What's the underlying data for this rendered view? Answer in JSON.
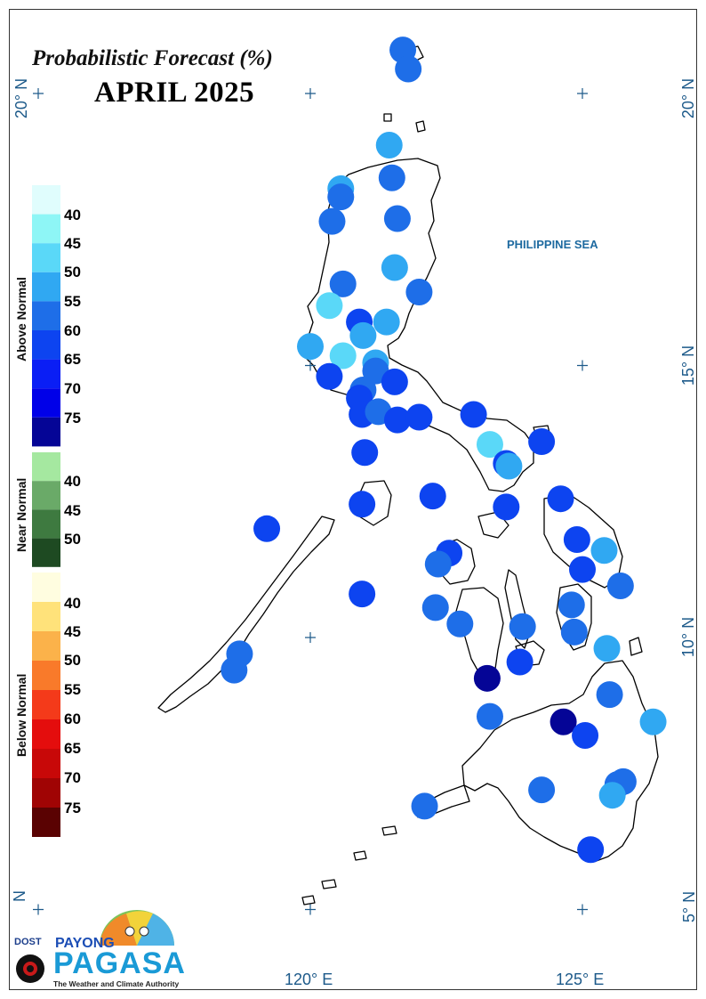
{
  "map": {
    "title": "Probabilistic Forecast (%)",
    "subtitle": "APRIL 2025",
    "sea_label": "PHILIPPINE SEA",
    "lat_labels": [
      "20° N",
      "15° N",
      "10° N",
      "5° N",
      "N"
    ],
    "lon_labels": [
      "120° E",
      "125° E"
    ]
  },
  "legend": {
    "above": {
      "title": "Above Normal",
      "labels": [
        "40",
        "45",
        "50",
        "55",
        "60",
        "65",
        "70",
        "75"
      ],
      "colors": [
        "#e0fdfd",
        "#8ef6f6",
        "#5ad8f8",
        "#30a8f2",
        "#1e6ee8",
        "#0d44f0",
        "#0a1ef5",
        "#0000e8",
        "#050596"
      ]
    },
    "near": {
      "title": "Near Normal",
      "labels": [
        "40",
        "45",
        "50"
      ],
      "colors": [
        "#a5e8a0",
        "#6aaa68",
        "#3e7a40",
        "#1e4a22"
      ]
    },
    "below": {
      "title": "Below Normal",
      "labels": [
        "40",
        "45",
        "50",
        "55",
        "60",
        "65",
        "70",
        "75"
      ],
      "colors": [
        "#fffde0",
        "#ffe27a",
        "#fbb24a",
        "#f97a2a",
        "#f43a1a",
        "#e40d0d",
        "#c80808",
        "#a00404",
        "#5a0202"
      ]
    }
  },
  "stations": [
    {
      "lon": 121.7,
      "lat": 20.8,
      "color": "#1e6ee8"
    },
    {
      "lon": 121.8,
      "lat": 20.45,
      "color": "#1e6ee8"
    },
    {
      "lon": 121.45,
      "lat": 19.05,
      "color": "#30a8f2"
    },
    {
      "lon": 121.5,
      "lat": 18.45,
      "color": "#1e6ee8"
    },
    {
      "lon": 120.56,
      "lat": 18.25,
      "color": "#30a8f2"
    },
    {
      "lon": 120.56,
      "lat": 18.1,
      "color": "#1e6ee8"
    },
    {
      "lon": 120.4,
      "lat": 17.65,
      "color": "#1e6ee8"
    },
    {
      "lon": 121.6,
      "lat": 17.7,
      "color": "#1e6ee8"
    },
    {
      "lon": 121.55,
      "lat": 16.8,
      "color": "#30a8f2"
    },
    {
      "lon": 120.6,
      "lat": 16.5,
      "color": "#1e6ee8"
    },
    {
      "lon": 122.0,
      "lat": 16.35,
      "color": "#1e6ee8"
    },
    {
      "lon": 120.35,
      "lat": 16.1,
      "color": "#5ad8f8"
    },
    {
      "lon": 120.9,
      "lat": 15.8,
      "color": "#0d44f0"
    },
    {
      "lon": 121.4,
      "lat": 15.8,
      "color": "#30a8f2"
    },
    {
      "lon": 120.97,
      "lat": 15.55,
      "color": "#30a8f2"
    },
    {
      "lon": 120.0,
      "lat": 15.35,
      "color": "#30a8f2"
    },
    {
      "lon": 120.6,
      "lat": 15.18,
      "color": "#5ad8f8"
    },
    {
      "lon": 121.2,
      "lat": 15.05,
      "color": "#30a8f2"
    },
    {
      "lon": 120.35,
      "lat": 14.8,
      "color": "#0d44f0"
    },
    {
      "lon": 121.2,
      "lat": 14.9,
      "color": "#1e6ee8"
    },
    {
      "lon": 121.55,
      "lat": 14.7,
      "color": "#0d44f0"
    },
    {
      "lon": 120.97,
      "lat": 14.55,
      "color": "#1e6ee8"
    },
    {
      "lon": 120.9,
      "lat": 14.4,
      "color": "#0d44f0"
    },
    {
      "lon": 120.95,
      "lat": 14.1,
      "color": "#0d44f0"
    },
    {
      "lon": 121.25,
      "lat": 14.15,
      "color": "#1e6ee8"
    },
    {
      "lon": 121.6,
      "lat": 14.0,
      "color": "#0d44f0"
    },
    {
      "lon": 122.0,
      "lat": 14.05,
      "color": "#0d44f0"
    },
    {
      "lon": 123.0,
      "lat": 14.1,
      "color": "#0d44f0"
    },
    {
      "lon": 123.3,
      "lat": 13.55,
      "color": "#5ad8f8"
    },
    {
      "lon": 124.25,
      "lat": 13.6,
      "color": "#0d44f0"
    },
    {
      "lon": 121.0,
      "lat": 13.4,
      "color": "#0d44f0"
    },
    {
      "lon": 123.6,
      "lat": 13.2,
      "color": "#0d44f0"
    },
    {
      "lon": 123.65,
      "lat": 13.15,
      "color": "#30a8f2"
    },
    {
      "lon": 122.25,
      "lat": 12.6,
      "color": "#0d44f0"
    },
    {
      "lon": 120.95,
      "lat": 12.45,
      "color": "#0d44f0"
    },
    {
      "lon": 124.6,
      "lat": 12.55,
      "color": "#0d44f0"
    },
    {
      "lon": 123.6,
      "lat": 12.4,
      "color": "#0d44f0"
    },
    {
      "lon": 119.2,
      "lat": 12.0,
      "color": "#0d44f0"
    },
    {
      "lon": 124.9,
      "lat": 11.8,
      "color": "#0d44f0"
    },
    {
      "lon": 125.4,
      "lat": 11.6,
      "color": "#30a8f2"
    },
    {
      "lon": 122.55,
      "lat": 11.55,
      "color": "#0d44f0"
    },
    {
      "lon": 122.35,
      "lat": 11.35,
      "color": "#1e6ee8"
    },
    {
      "lon": 125.0,
      "lat": 11.25,
      "color": "#0d44f0"
    },
    {
      "lon": 125.7,
      "lat": 10.95,
      "color": "#1e6ee8"
    },
    {
      "lon": 120.95,
      "lat": 10.8,
      "color": "#0d44f0"
    },
    {
      "lon": 124.8,
      "lat": 10.6,
      "color": "#1e6ee8"
    },
    {
      "lon": 122.3,
      "lat": 10.55,
      "color": "#1e6ee8"
    },
    {
      "lon": 122.75,
      "lat": 10.25,
      "color": "#1e6ee8"
    },
    {
      "lon": 123.9,
      "lat": 10.2,
      "color": "#1e6ee8"
    },
    {
      "lon": 124.85,
      "lat": 10.1,
      "color": "#1e6ee8"
    },
    {
      "lon": 118.7,
      "lat": 9.7,
      "color": "#1e6ee8"
    },
    {
      "lon": 125.45,
      "lat": 9.8,
      "color": "#30a8f2"
    },
    {
      "lon": 123.85,
      "lat": 9.55,
      "color": "#0d44f0"
    },
    {
      "lon": 118.6,
      "lat": 9.4,
      "color": "#1e6ee8"
    },
    {
      "lon": 123.25,
      "lat": 9.25,
      "color": "#050596"
    },
    {
      "lon": 125.5,
      "lat": 8.95,
      "color": "#1e6ee8"
    },
    {
      "lon": 123.3,
      "lat": 8.55,
      "color": "#1e6ee8"
    },
    {
      "lon": 124.65,
      "lat": 8.45,
      "color": "#050596"
    },
    {
      "lon": 126.3,
      "lat": 8.45,
      "color": "#30a8f2"
    },
    {
      "lon": 125.05,
      "lat": 8.2,
      "color": "#0d44f0"
    },
    {
      "lon": 125.75,
      "lat": 7.35,
      "color": "#1e6ee8"
    },
    {
      "lon": 125.65,
      "lat": 7.3,
      "color": "#1e6ee8"
    },
    {
      "lon": 124.25,
      "lat": 7.2,
      "color": "#1e6ee8"
    },
    {
      "lon": 125.55,
      "lat": 7.1,
      "color": "#30a8f2"
    },
    {
      "lon": 122.1,
      "lat": 6.9,
      "color": "#1e6ee8"
    },
    {
      "lon": 125.15,
      "lat": 6.1,
      "color": "#0d44f0"
    }
  ],
  "logo": {
    "dost": "DOST",
    "payong": "PAYONG",
    "pagasa": "PAGASA",
    "tagline": "The Weather and Climate Authority"
  }
}
